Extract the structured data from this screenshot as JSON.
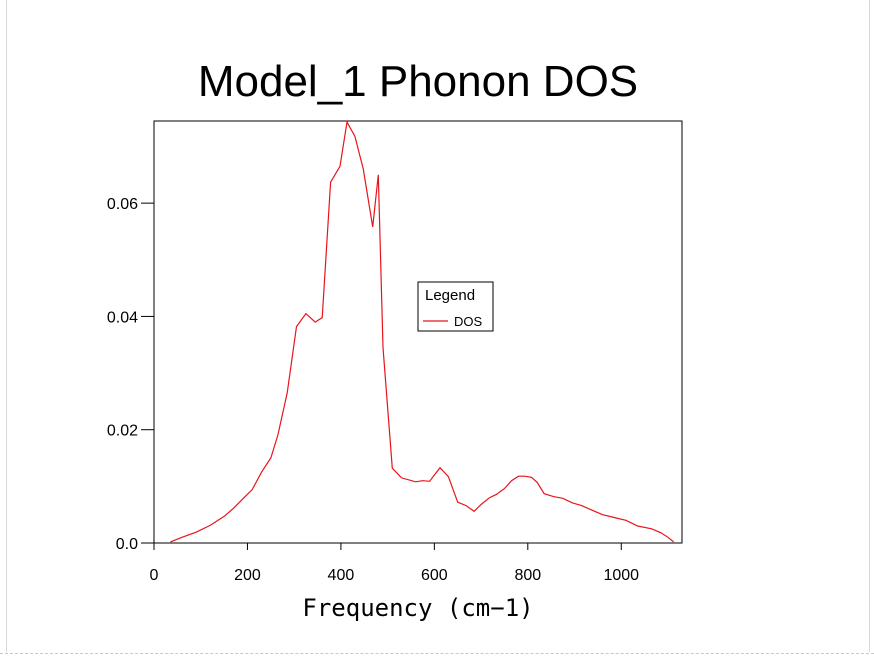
{
  "chart_data": {
    "type": "line",
    "title": "Model_1 Phonon DOS",
    "xlabel": "Frequency (cm−1)",
    "ylabel": "",
    "xlim": [
      0,
      1130
    ],
    "ylim": [
      0,
      0.0745
    ],
    "x_ticks": [
      0,
      200,
      400,
      600,
      800,
      1000
    ],
    "x_tick_labels": [
      "0",
      "200",
      "400",
      "600",
      "800",
      "1000"
    ],
    "y_ticks": [
      0,
      0.02,
      0.04,
      0.06
    ],
    "y_tick_labels": [
      "0.0",
      "0.02",
      "0.04",
      "0.06"
    ],
    "grid": false,
    "legend": {
      "title": "Legend",
      "position": "center-right"
    },
    "series": [
      {
        "name": "DOS",
        "color": "#e8141c",
        "x": [
          35,
          60,
          90,
          120,
          150,
          170,
          195,
          210,
          230,
          250,
          265,
          285,
          305,
          325,
          345,
          360,
          378,
          398,
          413,
          430,
          448,
          468,
          480,
          490,
          510,
          530,
          560,
          575,
          590,
          598,
          612,
          630,
          650,
          668,
          685,
          700,
          718,
          733,
          750,
          765,
          780,
          793,
          808,
          820,
          835,
          855,
          875,
          895,
          915,
          940,
          960,
          985,
          1010,
          1035,
          1065,
          1085,
          1100,
          1112
        ],
        "y": [
          0.0002,
          0.001,
          0.0019,
          0.0031,
          0.0047,
          0.0061,
          0.0082,
          0.0094,
          0.0125,
          0.015,
          0.019,
          0.0265,
          0.0382,
          0.0405,
          0.039,
          0.0398,
          0.0637,
          0.0665,
          0.0743,
          0.0718,
          0.066,
          0.0558,
          0.065,
          0.0345,
          0.0132,
          0.0115,
          0.0108,
          0.011,
          0.0109,
          0.0118,
          0.0133,
          0.0117,
          0.0072,
          0.0066,
          0.0056,
          0.0068,
          0.008,
          0.0086,
          0.0096,
          0.011,
          0.0118,
          0.0118,
          0.0116,
          0.0107,
          0.0087,
          0.0082,
          0.0079,
          0.0071,
          0.0066,
          0.0057,
          0.005,
          0.0045,
          0.004,
          0.003,
          0.0025,
          0.0018,
          0.001,
          0.0002
        ]
      }
    ]
  }
}
